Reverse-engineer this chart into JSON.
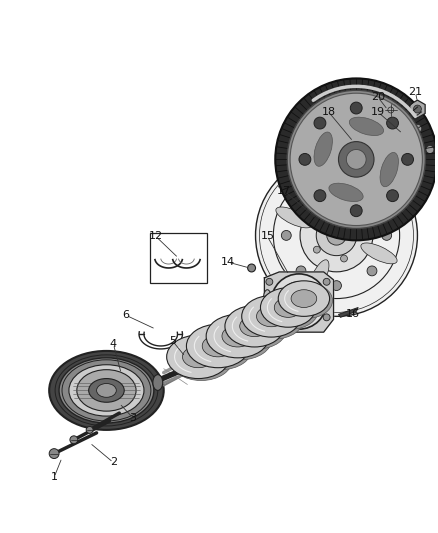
{
  "bg_color": "#ffffff",
  "fig_width": 4.38,
  "fig_height": 5.33,
  "dpi": 100,
  "dgray": "#333333",
  "mgray": "#777777",
  "lgray": "#bbbbbb",
  "black": "#111111"
}
